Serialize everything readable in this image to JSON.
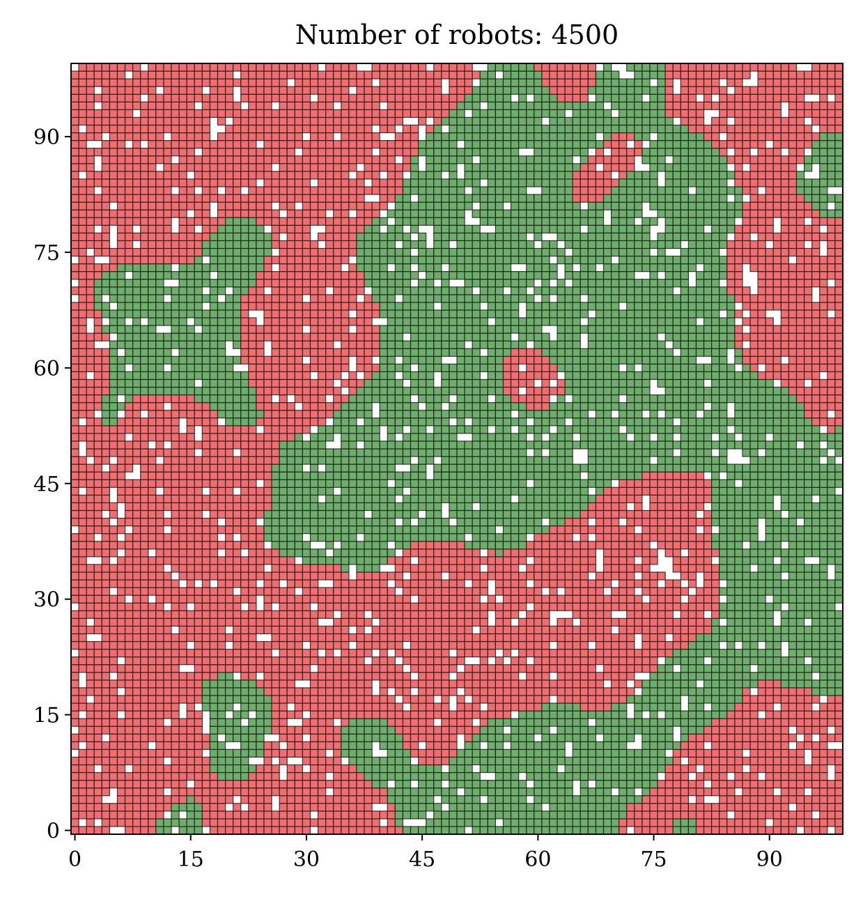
{
  "chart_data": {
    "type": "heatmap",
    "title": "Number of robots: 4500",
    "xlabel": "",
    "ylabel": "",
    "grid": {
      "cols": 100,
      "rows": 100
    },
    "xlim": [
      -0.5,
      99.5
    ],
    "ylim": [
      -0.5,
      99.5
    ],
    "xticks": [
      0,
      15,
      30,
      45,
      60,
      75,
      90
    ],
    "yticks": [
      0,
      15,
      30,
      45,
      60,
      75,
      90
    ],
    "cell_states": [
      "empty",
      "green",
      "red"
    ],
    "state_shares": {
      "empty": 0.1,
      "green": 0.46,
      "red": 0.44
    },
    "colors": {
      "green": "#6cae6a",
      "red": "#f26d6f",
      "empty": "#ffffff",
      "cell_edge": "#1a1a1a"
    },
    "robots": 4500
  }
}
